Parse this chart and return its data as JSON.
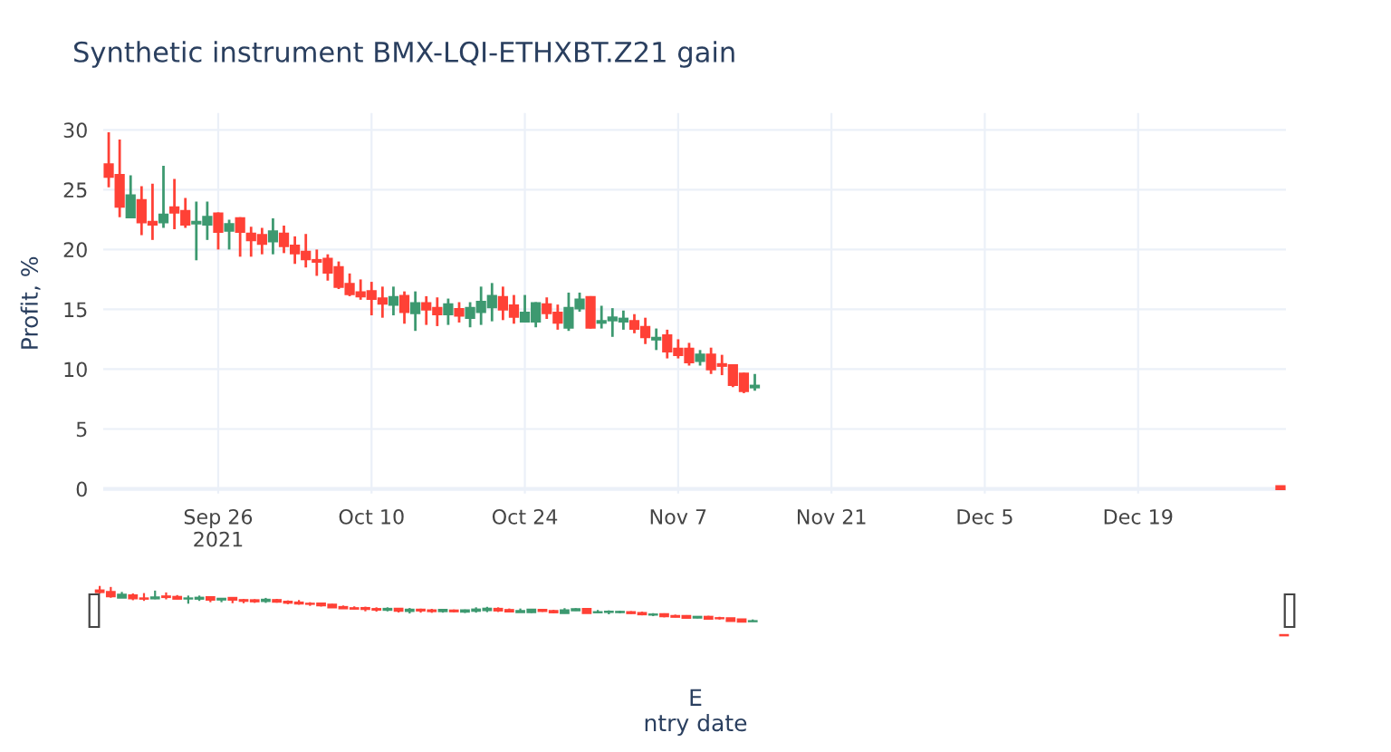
{
  "chart_data": {
    "type": "candlestick",
    "title": "Synthetic instrument BMX-LQI-ETHXBT.Z21 gain",
    "annotations": [
      "E\nntry date"
    ],
    "ylabel": "Profit, %",
    "x": [
      "2021-09-16",
      "2021-09-17",
      "2021-09-18",
      "2021-09-19",
      "2021-09-20",
      "2021-09-21",
      "2021-09-22",
      "2021-09-23",
      "2021-09-24",
      "2021-09-25",
      "2021-09-26",
      "2021-09-27",
      "2021-09-28",
      "2021-09-29",
      "2021-09-30",
      "2021-10-01",
      "2021-10-02",
      "2021-10-03",
      "2021-10-04",
      "2021-10-05",
      "2021-10-06",
      "2021-10-07",
      "2021-10-08",
      "2021-10-09",
      "2021-10-10",
      "2021-10-11",
      "2021-10-12",
      "2021-10-13",
      "2021-10-14",
      "2021-10-15",
      "2021-10-16",
      "2021-10-17",
      "2021-10-18",
      "2021-10-19",
      "2021-10-20",
      "2021-10-21",
      "2021-10-22",
      "2021-10-23",
      "2021-10-24",
      "2021-10-25",
      "2021-10-26",
      "2021-10-27",
      "2021-10-28",
      "2021-10-29",
      "2021-10-30",
      "2021-10-31",
      "2021-11-01",
      "2021-11-02",
      "2021-11-03",
      "2021-11-04",
      "2021-11-05",
      "2021-11-06",
      "2021-11-07",
      "2021-11-08",
      "2021-11-09",
      "2021-11-10",
      "2021-11-11",
      "2021-11-12",
      "2021-11-13",
      "2021-11-14",
      "2022-01-01"
    ],
    "ohlc": [
      [
        27.1,
        29.8,
        25.2,
        26.1
      ],
      [
        26.2,
        29.2,
        22.7,
        23.6
      ],
      [
        22.7,
        26.2,
        22.7,
        24.5
      ],
      [
        24.1,
        25.3,
        21.2,
        22.3
      ],
      [
        22.3,
        25.5,
        20.8,
        22.1
      ],
      [
        22.3,
        27.0,
        21.8,
        22.9
      ],
      [
        23.5,
        25.9,
        21.7,
        23.1
      ],
      [
        23.2,
        24.3,
        21.8,
        22.1
      ],
      [
        22.2,
        24.0,
        19.1,
        22.3
      ],
      [
        22.1,
        24.0,
        20.8,
        22.7
      ],
      [
        23.0,
        23.1,
        20.0,
        21.5
      ],
      [
        21.6,
        22.5,
        20.0,
        22.1
      ],
      [
        22.6,
        22.7,
        19.4,
        21.5
      ],
      [
        21.3,
        21.9,
        19.4,
        20.8
      ],
      [
        21.2,
        21.8,
        19.6,
        20.5
      ],
      [
        20.7,
        22.6,
        19.6,
        21.5
      ],
      [
        21.3,
        22.0,
        19.7,
        20.3
      ],
      [
        20.3,
        21.1,
        18.8,
        19.7
      ],
      [
        19.8,
        21.3,
        18.5,
        19.2
      ],
      [
        19.1,
        20.0,
        17.8,
        19.0
      ],
      [
        19.2,
        19.6,
        17.4,
        18.1
      ],
      [
        18.5,
        19.0,
        16.7,
        16.9
      ],
      [
        17.1,
        18.0,
        16.1,
        16.3
      ],
      [
        16.4,
        17.5,
        15.8,
        16.1
      ],
      [
        16.5,
        17.3,
        14.5,
        15.9
      ],
      [
        15.9,
        16.9,
        14.3,
        15.5
      ],
      [
        15.4,
        16.9,
        14.5,
        16.0
      ],
      [
        16.1,
        16.5,
        13.8,
        14.8
      ],
      [
        14.7,
        16.5,
        13.2,
        15.5
      ],
      [
        15.5,
        16.1,
        13.7,
        15.0
      ],
      [
        15.1,
        16.0,
        13.6,
        14.6
      ],
      [
        14.6,
        15.9,
        13.7,
        15.4
      ],
      [
        15.0,
        15.6,
        13.9,
        14.5
      ],
      [
        14.3,
        15.6,
        13.5,
        15.1
      ],
      [
        14.8,
        16.9,
        13.7,
        15.6
      ],
      [
        15.2,
        17.2,
        14.0,
        16.1
      ],
      [
        16.0,
        16.9,
        14.1,
        15.0
      ],
      [
        15.3,
        16.2,
        13.8,
        14.4
      ],
      [
        14.0,
        16.2,
        13.9,
        14.7
      ],
      [
        14.0,
        15.6,
        13.5,
        15.5
      ],
      [
        15.4,
        16.0,
        14.2,
        14.7
      ],
      [
        14.7,
        15.4,
        13.3,
        13.9
      ],
      [
        13.5,
        16.4,
        13.2,
        15.1
      ],
      [
        15.1,
        16.4,
        14.8,
        15.8
      ],
      [
        16.0,
        16.1,
        13.4,
        13.5
      ],
      [
        13.9,
        15.3,
        13.4,
        14.0
      ],
      [
        14.1,
        15.1,
        12.7,
        14.3
      ],
      [
        14.0,
        14.9,
        13.3,
        14.2
      ],
      [
        14.0,
        14.6,
        13.0,
        13.4
      ],
      [
        13.5,
        14.3,
        12.1,
        12.7
      ],
      [
        12.5,
        13.4,
        11.6,
        12.6
      ],
      [
        12.8,
        13.3,
        10.9,
        11.5
      ],
      [
        11.7,
        12.5,
        10.9,
        11.2
      ],
      [
        11.7,
        12.2,
        10.3,
        10.6
      ],
      [
        10.7,
        11.6,
        10.3,
        11.2
      ],
      [
        11.2,
        11.8,
        9.6,
        10.0
      ],
      [
        10.4,
        11.2,
        9.5,
        10.3
      ],
      [
        10.3,
        10.4,
        8.5,
        8.7
      ],
      [
        9.6,
        9.7,
        8.0,
        8.2
      ],
      [
        8.5,
        9.6,
        8.2,
        8.6
      ],
      [
        0.2,
        0.2,
        0,
        0
      ]
    ],
    "colors": [
      "#ff4136",
      "#ff4136",
      "#3d9970",
      "#ff4136",
      "#ff4136",
      "#3d9970",
      "#ff4136",
      "#ff4136",
      "#3d9970",
      "#3d9970",
      "#ff4136",
      "#3d9970",
      "#ff4136",
      "#ff4136",
      "#ff4136",
      "#3d9970",
      "#ff4136",
      "#ff4136",
      "#ff4136",
      "#ff4136",
      "#ff4136",
      "#ff4136",
      "#ff4136",
      "#ff4136",
      "#ff4136",
      "#ff4136",
      "#3d9970",
      "#ff4136",
      "#3d9970",
      "#ff4136",
      "#ff4136",
      "#3d9970",
      "#ff4136",
      "#3d9970",
      "#3d9970",
      "#3d9970",
      "#ff4136",
      "#ff4136",
      "#3d9970",
      "#3d9970",
      "#ff4136",
      "#ff4136",
      "#3d9970",
      "#3d9970",
      "#ff4136",
      "#3d9970",
      "#3d9970",
      "#3d9970",
      "#ff4136",
      "#ff4136",
      "#3d9970",
      "#ff4136",
      "#ff4136",
      "#ff4136",
      "#3d9970",
      "#ff4136",
      "#ff4136",
      "#ff4136",
      "#ff4136",
      "#3d9970",
      "#ff4136"
    ],
    "xlim": [
      "2021-09-15T12:00",
      "2022-01-01T12:00"
    ],
    "xticks": [
      {
        "value": "2021-09-26",
        "label": "Sep 26\n2021"
      },
      {
        "value": "2021-10-10",
        "label": "Oct 10"
      },
      {
        "value": "2021-10-24",
        "label": "Oct 24"
      },
      {
        "value": "2021-11-07",
        "label": "Nov 7"
      },
      {
        "value": "2021-11-21",
        "label": "Nov 21"
      },
      {
        "value": "2021-12-05",
        "label": "Dec 5"
      },
      {
        "value": "2021-12-19",
        "label": "Dec 19"
      }
    ],
    "ylim": [
      -0.4,
      31.4
    ],
    "yticks": [
      0,
      5,
      10,
      15,
      20,
      25,
      30
    ],
    "grid": true
  }
}
